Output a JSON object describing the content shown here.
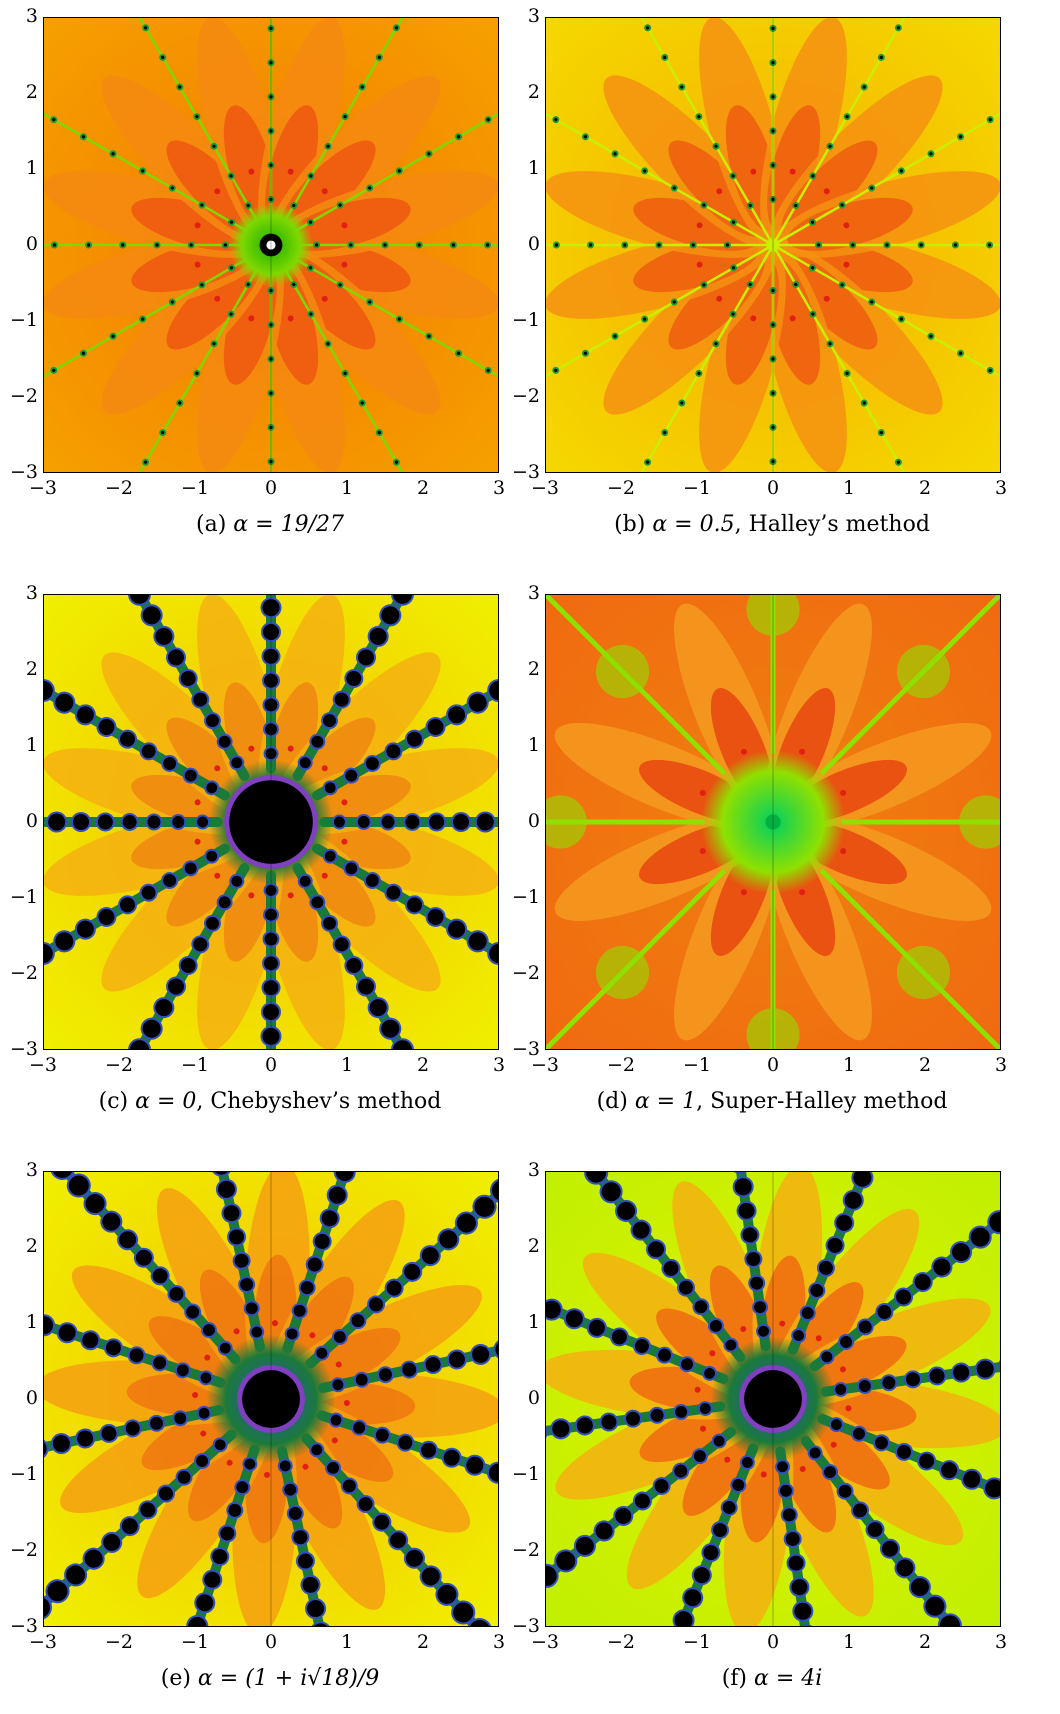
{
  "figure": {
    "x_ticks": [
      "−3",
      "−2",
      "−1",
      "0",
      "1",
      "2",
      "3"
    ],
    "y_ticks": [
      "3",
      "2",
      "1",
      "0",
      "−1",
      "−2",
      "−3"
    ],
    "x_range": [
      -3,
      3
    ],
    "y_range": [
      -3,
      3
    ],
    "panels": [
      {
        "id": "a",
        "caption_prefix": "(a)",
        "caption_math": "α = 19/27",
        "caption_suffix": "",
        "alpha": "19/27",
        "colors": {
          "bg": "#f5a000",
          "mid": "#f57a00",
          "petal": "#f05a10",
          "lobe": "#f58a10",
          "ray": "#7fd800",
          "core": "#1ab000",
          "hole": "#000000"
        },
        "style": "petals",
        "hole_radius": 0.15,
        "core_radius": 0.55
      },
      {
        "id": "b",
        "caption_prefix": "(b)",
        "caption_math": "α = 0.5",
        "caption_suffix": ", Halley’s method",
        "alpha": "0.5",
        "colors": {
          "bg": "#f5d800",
          "mid": "#f5b000",
          "petal": "#f06010",
          "lobe": "#f59010",
          "ray": "#c8f000",
          "core": "#c8f000",
          "hole": "#c8f000"
        },
        "style": "petals",
        "hole_radius": 0,
        "core_radius": 0.1
      },
      {
        "id": "c",
        "caption_prefix": "(c)",
        "caption_math": "α = 0",
        "caption_suffix": ", Chebyshev’s method",
        "alpha": "0",
        "colors": {
          "bg": "#f0f000",
          "mid": "#f5c000",
          "petal": "#f08a10",
          "lobe": "#f5b010",
          "ray": "#1a7a3a",
          "core": "#3050c0",
          "hole": "#000000"
        },
        "style": "fractal",
        "hole_radius": 0.55,
        "core_radius": 0.82
      },
      {
        "id": "d",
        "caption_prefix": "(d)",
        "caption_math": "α = 1",
        "caption_suffix": ", Super-Halley method",
        "alpha": "1",
        "colors": {
          "bg": "#f06a10",
          "mid": "#f08010",
          "petal": "#e84a10",
          "lobe": "#f59a20",
          "ray": "#90e000",
          "core": "#00d060",
          "hole": "#00b040"
        },
        "style": "superhalley",
        "hole_radius": 0.1,
        "core_radius": 0.95
      },
      {
        "id": "e",
        "caption_prefix": "(e)",
        "caption_math": "α = (1 + i√18)/9",
        "caption_suffix": "",
        "alpha": "(1 + i√18)/9",
        "colors": {
          "bg": "#f0f000",
          "mid": "#f5c000",
          "petal": "#f07a10",
          "lobe": "#f5a010",
          "ray": "#1a7a3a",
          "core": "#3050c0",
          "hole": "#000000"
        },
        "style": "fractal",
        "hole_radius": 0.38,
        "core_radius": 0.85
      },
      {
        "id": "f",
        "caption_prefix": "(f)",
        "caption_math": "α = 4i",
        "caption_suffix": "",
        "alpha": "4i",
        "colors": {
          "bg": "#c0f000",
          "mid": "#e0f000",
          "petal": "#f07010",
          "lobe": "#f5b010",
          "ray": "#1a7a3a",
          "core": "#3050c0",
          "hole": "#000000"
        },
        "style": "fractal",
        "hole_radius": 0.38,
        "core_radius": 0.82
      }
    ]
  }
}
